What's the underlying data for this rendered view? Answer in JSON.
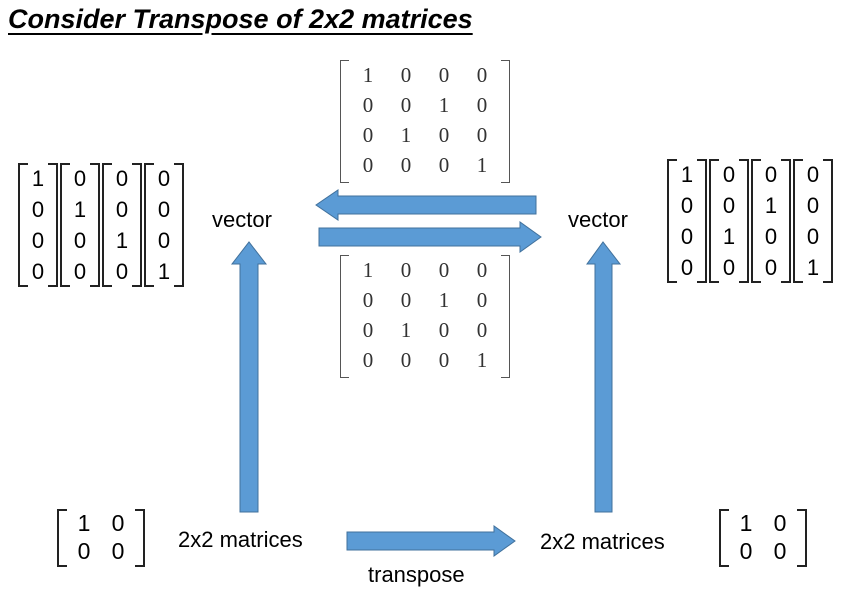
{
  "title": "Consider Transpose of 2x2 matrices",
  "labels": {
    "vector_left": "vector",
    "vector_right": "vector",
    "matrices_left": "2x2 matrices",
    "matrices_right": "2x2 matrices",
    "transpose": "transpose"
  },
  "permutation_top": [
    [
      "1",
      "0",
      "0",
      "0"
    ],
    [
      "0",
      "0",
      "1",
      "0"
    ],
    [
      "0",
      "1",
      "0",
      "0"
    ],
    [
      "0",
      "0",
      "0",
      "1"
    ]
  ],
  "permutation_bottom": [
    [
      "1",
      "0",
      "0",
      "0"
    ],
    [
      "0",
      "0",
      "1",
      "0"
    ],
    [
      "0",
      "1",
      "0",
      "0"
    ],
    [
      "0",
      "0",
      "0",
      "1"
    ]
  ],
  "basis_left": [
    [
      "1",
      "0",
      "0",
      "0"
    ],
    [
      "0",
      "1",
      "0",
      "0"
    ],
    [
      "0",
      "0",
      "1",
      "0"
    ],
    [
      "0",
      "0",
      "0",
      "1"
    ]
  ],
  "basis_right": [
    [
      "1",
      "0",
      "0",
      "0"
    ],
    [
      "0",
      "0",
      "1",
      "0"
    ],
    [
      "0",
      "1",
      "0",
      "0"
    ],
    [
      "0",
      "0",
      "0",
      "1"
    ]
  ],
  "matrix_left": [
    [
      "1",
      "0"
    ],
    [
      "0",
      "0"
    ]
  ],
  "matrix_right": [
    [
      "1",
      "0"
    ],
    [
      "0",
      "0"
    ]
  ],
  "arrow_color": "#5b9bd5",
  "arrow_stroke": "#41719c"
}
